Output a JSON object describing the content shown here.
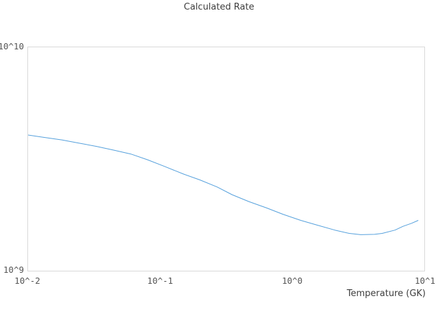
{
  "chart_data": {
    "type": "line",
    "title": "Calculated Rate",
    "xlabel": "Temperature (GK)",
    "ylabel": "",
    "x_scale": "log",
    "y_scale": "log",
    "xlim": [
      0.01,
      10
    ],
    "ylim": [
      1000000000.0,
      10000000000.0
    ],
    "grid": false,
    "legend": false,
    "frame_color": "#d9d9d9",
    "x_tick_labels": [
      "10^-2",
      "10^-1",
      "10^0",
      "10^1"
    ],
    "x_ticks": [
      0.01,
      0.1,
      1,
      10
    ],
    "y_tick_labels": [
      "10^9",
      "10^10"
    ],
    "y_ticks": [
      1000000000.0,
      10000000000.0
    ],
    "series": [
      {
        "name": "Calculated Rate",
        "color": "#55a0dc",
        "x": [
          0.01,
          0.013,
          0.018,
          0.024,
          0.033,
          0.045,
          0.06,
          0.08,
          0.108,
          0.15,
          0.2,
          0.27,
          0.35,
          0.47,
          0.64,
          0.85,
          1.16,
          1.55,
          2.1,
          2.7,
          3.3,
          4.2,
          4.8,
          6.0,
          6.9,
          8.0,
          9.0
        ],
        "y": [
          4050000000.0,
          3960000000.0,
          3850000000.0,
          3730000000.0,
          3600000000.0,
          3460000000.0,
          3330000000.0,
          3140000000.0,
          2930000000.0,
          2710000000.0,
          2550000000.0,
          2370000000.0,
          2190000000.0,
          2040000000.0,
          1910000000.0,
          1790000000.0,
          1680000000.0,
          1600000000.0,
          1520000000.0,
          1470000000.0,
          1450000000.0,
          1455000000.0,
          1470000000.0,
          1520000000.0,
          1580000000.0,
          1630000000.0,
          1680000000.0
        ]
      }
    ]
  }
}
